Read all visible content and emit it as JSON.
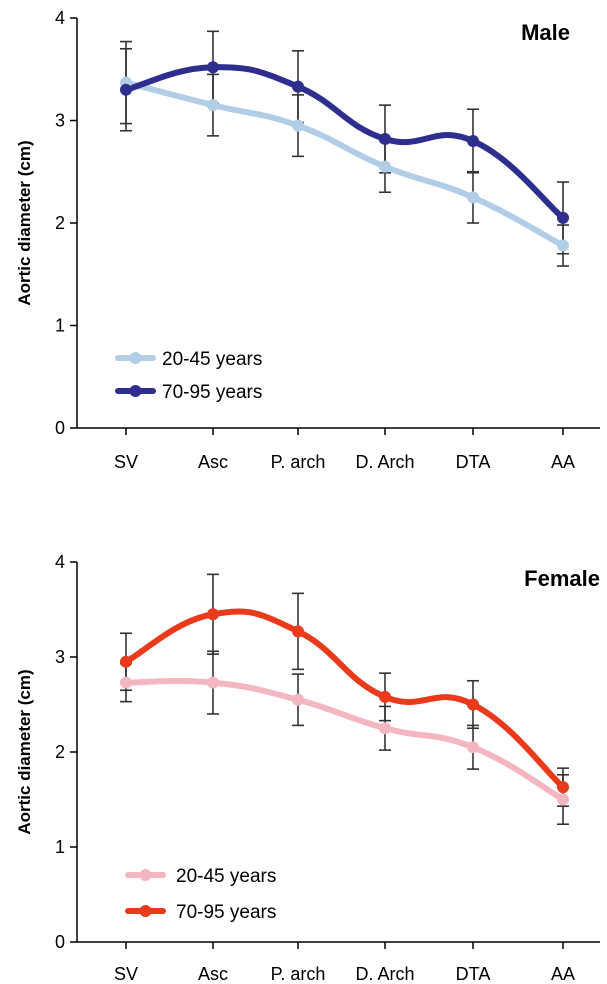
{
  "chart_data": [
    {
      "type": "line",
      "title": "Male",
      "ylabel": "Aortic diameter (cm)",
      "xlabel": "",
      "ylim": [
        0,
        4
      ],
      "yticks": [
        "0",
        "1",
        "2",
        "3",
        "4"
      ],
      "categories": [
        "SV",
        "Asc",
        "P. arch",
        "D. Arch",
        "DTA",
        "AA"
      ],
      "legend_position": "bottom-left",
      "series": [
        {
          "name": "20-45 years",
          "color": "#b2cde6",
          "values": [
            3.37,
            3.15,
            2.95,
            2.55,
            2.25,
            1.78
          ],
          "errors": [
            0.4,
            0.3,
            0.3,
            0.25,
            0.25,
            0.2
          ]
        },
        {
          "name": "70-95 years",
          "color": "#2e2e8f",
          "values": [
            3.3,
            3.52,
            3.33,
            2.82,
            2.8,
            2.05
          ],
          "errors": [
            0.4,
            0.35,
            0.35,
            0.33,
            0.31,
            0.35
          ]
        }
      ]
    },
    {
      "type": "line",
      "title": "Female",
      "ylabel": "Aortic diameter (cm)",
      "xlabel": "",
      "ylim": [
        0,
        4
      ],
      "yticks": [
        "0",
        "1",
        "2",
        "3",
        "4"
      ],
      "categories": [
        "SV",
        "Asc",
        "P. arch",
        "D. Arch",
        "DTA",
        "AA"
      ],
      "legend_position": "bottom-left",
      "series": [
        {
          "name": "20-45 years",
          "color": "#f4b6c0",
          "values": [
            2.73,
            2.73,
            2.55,
            2.25,
            2.05,
            1.5
          ],
          "errors": [
            0.2,
            0.33,
            0.27,
            0.23,
            0.23,
            0.26
          ]
        },
        {
          "name": "70-95 years",
          "color": "#ea3a1c",
          "values": [
            2.95,
            3.45,
            3.27,
            2.58,
            2.5,
            1.63
          ],
          "errors": [
            0.3,
            0.42,
            0.4,
            0.25,
            0.25,
            0.2
          ]
        }
      ]
    }
  ]
}
